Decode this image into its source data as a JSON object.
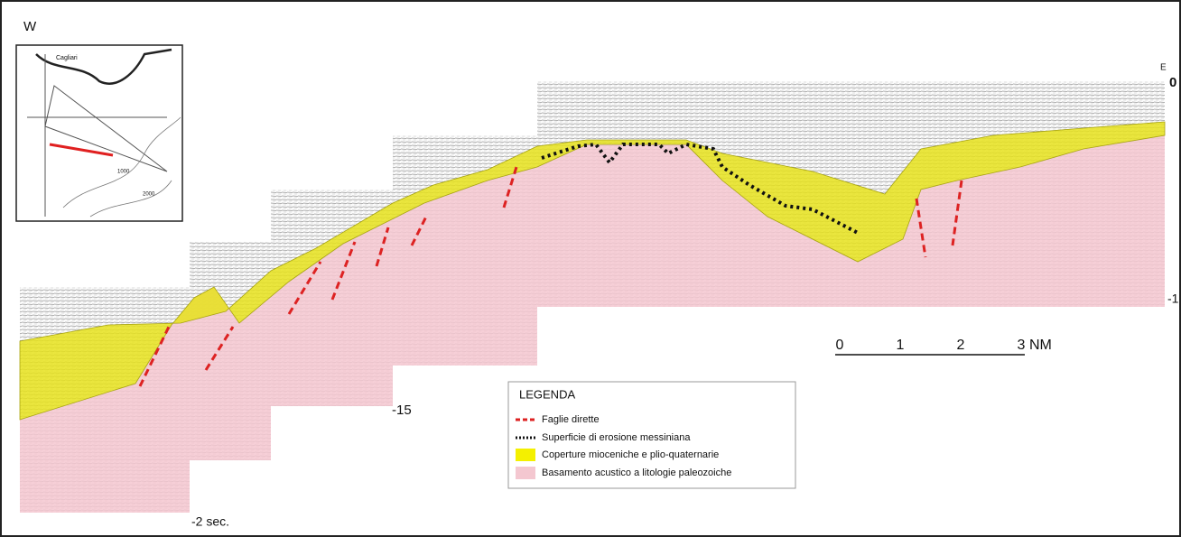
{
  "header": {
    "west": "W",
    "east": "E"
  },
  "time_scale": {
    "top": "0",
    "right": "-1",
    "middle": "-15",
    "bottom": "-2 sec."
  },
  "distance_scale": {
    "ticks": [
      "0",
      "1",
      "2",
      "3"
    ],
    "unit": "NM"
  },
  "map": {
    "city": "Cagliari",
    "contours": [
      "1000",
      "2000"
    ]
  },
  "legend": {
    "title": "LEGENDA",
    "items": [
      "Faglie dirette",
      "Superficie di erosione messiniana",
      "Coperture mioceniche e plio-quaternarie",
      "Basamento acustico a litologie paleozoiche"
    ]
  }
}
